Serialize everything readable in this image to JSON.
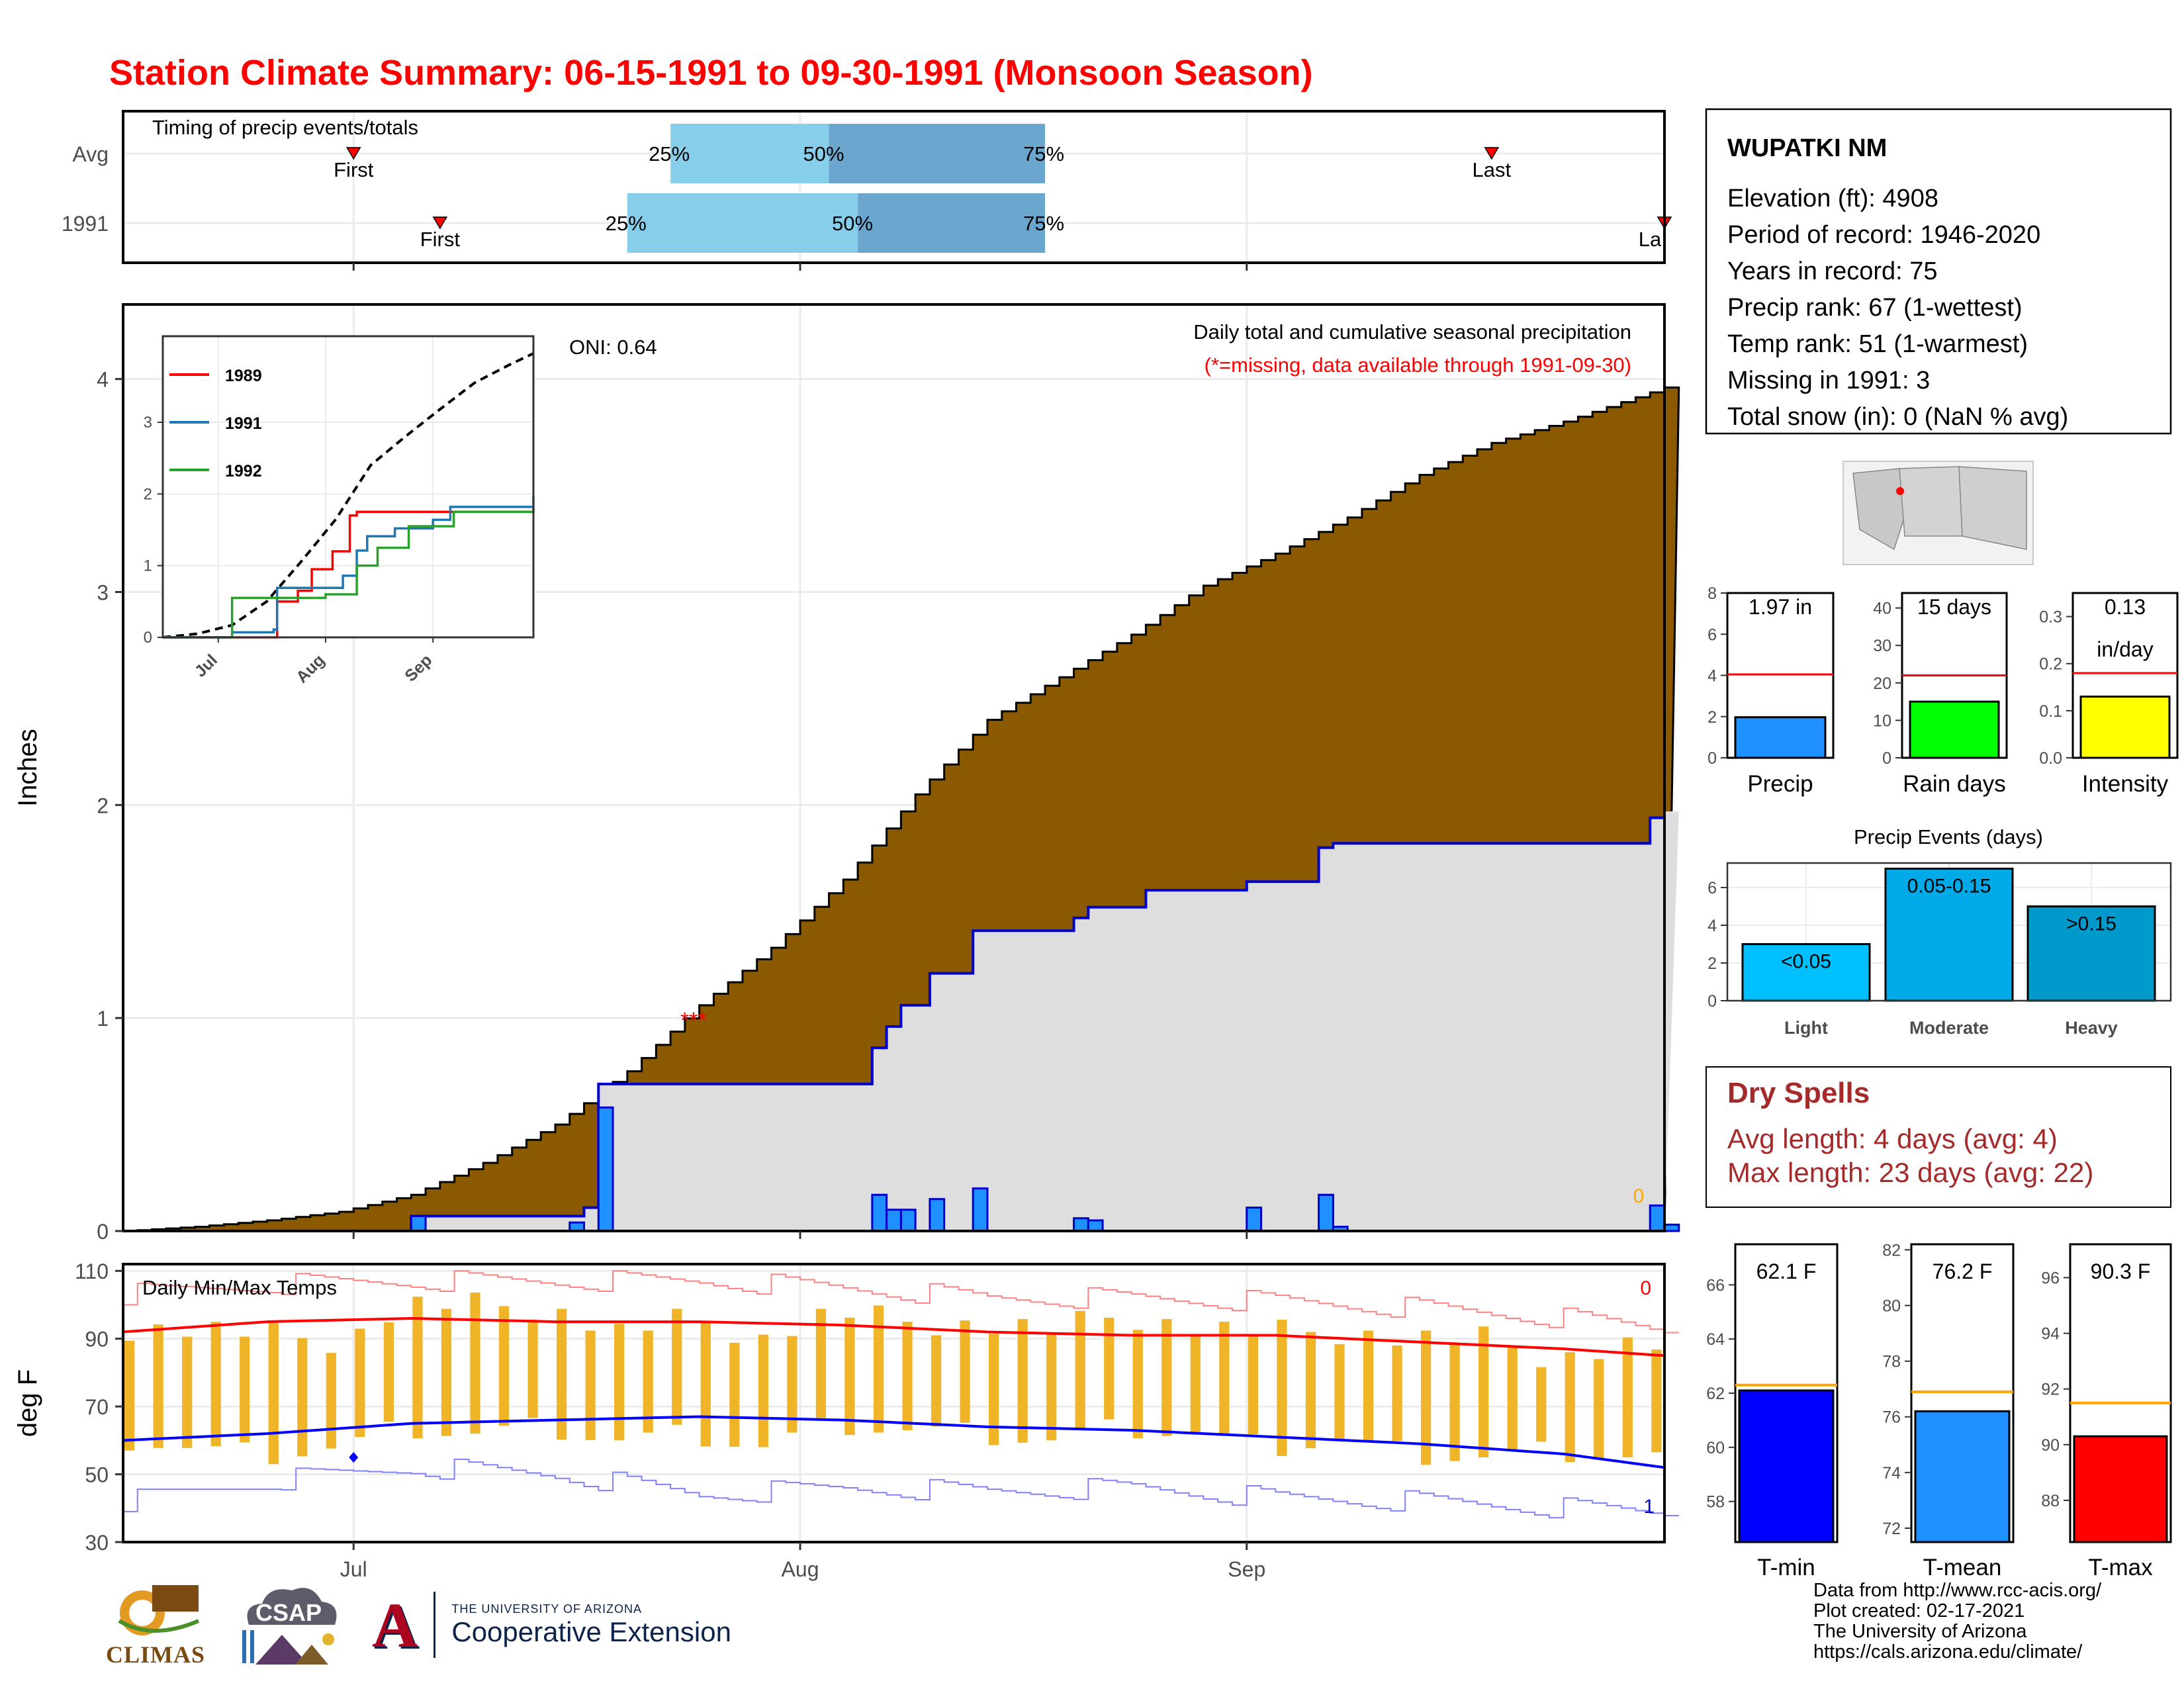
{
  "title": "Station Climate Summary: 06-15-1991 to 09-30-1991 (Monsoon Season)",
  "colors": {
    "title_red": "#ff0000",
    "cumulative_avg_fill": "#8b5a00",
    "observed_fill": "#dedede",
    "daily_bar": "#1e90ff",
    "daily_bar_border": "#0000cd",
    "timing_light": "#87ceeb",
    "timing_dark": "#6ba6cf",
    "temp_avg_max": "#ff0000",
    "temp_avg_min": "#0000ff",
    "temp_bar": "#f0b429",
    "record_line_max": "#ff8080",
    "record_line_min": "#8080ff",
    "tmin_bar": "#0000ff",
    "tmean_bar": "#1e90ff",
    "tmax_bar": "#ff0000",
    "precip_bar": "#1e90ff",
    "raindays_bar": "#00ff00",
    "intensity_bar": "#ffff00",
    "light_bar": "#00bfff",
    "moderate_bar": "#00a9e8",
    "heavy_bar": "#0099cc",
    "dry_spell_text": "#a52a2a"
  },
  "timing": {
    "title": "Timing of precip events/totals",
    "rows": [
      {
        "label": "Avg",
        "first_label": "First",
        "last_label": "Last",
        "first": "1991-07-01",
        "q25": "1991-07-23",
        "q50": "1991-08-03",
        "q75": "1991-08-18",
        "last": "1991-09-18"
      },
      {
        "label": "1991",
        "first_label": "First",
        "last_label": "La",
        "first": "1991-07-07",
        "q25": "1991-07-20",
        "q50": "1991-08-05",
        "q75": "1991-08-18",
        "last": "1991-09-30"
      }
    ],
    "q25_label": "25%",
    "q50_label": "50%",
    "q75_label": "75%"
  },
  "main_panel": {
    "annotation_title": "Daily total and cumulative seasonal precipitation",
    "annotation_missing": "(*=missing, data available through 1991-09-30)",
    "oni": "ONI: 0.64",
    "missing_marker": "***",
    "zero_label": "0",
    "ylabel": "Inches"
  },
  "inset": {
    "legend": [
      {
        "name": "1989",
        "color": "#ff0000"
      },
      {
        "name": "1991",
        "color": "#1f77b4"
      },
      {
        "name": "1992",
        "color": "#2ca02c"
      }
    ],
    "y_ticks": [
      "0",
      "1",
      "2",
      "3"
    ],
    "x_ticks": [
      "Jul",
      "Aug",
      "Sep"
    ]
  },
  "temp_panel": {
    "title": "Daily Min/Max Temps",
    "ylabel": "deg F",
    "y_ticks": [
      "30",
      "50",
      "70",
      "90",
      "110"
    ],
    "count_max": "0",
    "count_min": "1"
  },
  "x_ticks": [
    "Jul",
    "Aug",
    "Sep"
  ],
  "station": {
    "name": "WUPATKI NM",
    "lines": [
      "Elevation (ft): 4908",
      "Period of record: 1946-2020",
      "Years in record: 75",
      "Precip rank: 67 (1-wettest)",
      "Temp rank: 51 (1-warmest)",
      "Missing in 1991: 3",
      "Total snow (in): 0 (NaN % avg)"
    ]
  },
  "mini_bars": [
    {
      "label": "Precip",
      "value_text": "1.97 in",
      "value": 1.97,
      "avg": 4.05,
      "ymax": 8,
      "ticks": [
        "0",
        "2",
        "4",
        "6",
        "8"
      ],
      "tick_vals": [
        0,
        2,
        4,
        6,
        8
      ],
      "color": "#1e90ff"
    },
    {
      "label": "Rain days",
      "value_text": "15 days",
      "value": 15,
      "avg": 22,
      "ymax": 44,
      "ticks": [
        "0",
        "10",
        "20",
        "30",
        "40"
      ],
      "tick_vals": [
        0,
        10,
        20,
        30,
        40
      ],
      "color": "#00ff00"
    },
    {
      "label": "Intensity",
      "value_text": "0.13",
      "value_text2": "in/day",
      "value": 0.13,
      "avg": 0.18,
      "ymax": 0.35,
      "ticks": [
        "0.0",
        "0.1",
        "0.2",
        "0.3"
      ],
      "tick_vals": [
        0,
        0.1,
        0.2,
        0.3
      ],
      "color": "#ffff00"
    }
  ],
  "precip_events": {
    "title": "Precip Events (days)",
    "categories": [
      "Light",
      "Moderate",
      "Heavy"
    ],
    "bar_labels": [
      "<0.05",
      "0.05-0.15",
      ">0.15"
    ],
    "values": [
      3,
      7,
      5
    ],
    "ticks": [
      "0",
      "2",
      "4",
      "6"
    ],
    "colors": [
      "#00bfff",
      "#00a9e8",
      "#0099cc"
    ]
  },
  "dry_spells": {
    "title": "Dry Spells",
    "avg_line": "Avg length: 4 days (avg: 4)",
    "max_line": "Max length: 23 days (avg: 22)"
  },
  "temp_bars": [
    {
      "label": "T-min",
      "value_text": "62.1 F",
      "value": 62.1,
      "avg": 62.3,
      "ymin": 56.5,
      "ymax": 67.5,
      "ticks": [
        "58",
        "60",
        "62",
        "64",
        "66"
      ],
      "tick_vals": [
        58,
        60,
        62,
        64,
        66
      ],
      "color": "#0000ff"
    },
    {
      "label": "T-mean",
      "value_text": "76.2 F",
      "value": 76.2,
      "avg": 76.9,
      "ymin": 71.5,
      "ymax": 82.2,
      "ticks": [
        "72",
        "74",
        "76",
        "78",
        "80",
        "82"
      ],
      "tick_vals": [
        72,
        74,
        76,
        78,
        80,
        82
      ],
      "color": "#1e90ff"
    },
    {
      "label": "T-max",
      "value_text": "90.3 F",
      "value": 90.3,
      "avg": 91.5,
      "ymin": 86.5,
      "ymax": 97.2,
      "ticks": [
        "88",
        "90",
        "92",
        "94",
        "96"
      ],
      "tick_vals": [
        88,
        90,
        92,
        94,
        96
      ],
      "color": "#ff0000"
    }
  ],
  "logos": {
    "climas": "CLIMAS",
    "csap": "CSAP",
    "ua_small": "THE UNIVERSITY OF ARIZONA",
    "ua_big": "Cooperative Extension"
  },
  "credits": [
    "Data from http://www.rcc-acis.org/",
    "Plot created: 02-17-2021",
    "The University of Arizona",
    "https://cals.arizona.edu/climate/"
  ],
  "chart_data": [
    {
      "type": "area",
      "title": "Daily total and cumulative seasonal precipitation",
      "ylabel": "Inches",
      "x_start": "1991-06-15",
      "x_end": "1991-09-30",
      "ylim": [
        0,
        4.35
      ],
      "y_ticks": [
        0,
        1,
        2,
        3,
        4
      ],
      "x_ticks": [
        "Jul",
        "Aug",
        "Sep"
      ],
      "series": [
        {
          "name": "cumulative average",
          "x": [
            "1991-06-15",
            "1991-06-20",
            "1991-06-25",
            "1991-06-30",
            "1991-07-05",
            "1991-07-10",
            "1991-07-15",
            "1991-07-20",
            "1991-07-25",
            "1991-07-30",
            "1991-08-04",
            "1991-08-09",
            "1991-08-14",
            "1991-08-19",
            "1991-08-24",
            "1991-08-29",
            "1991-09-03",
            "1991-09-08",
            "1991-09-13",
            "1991-09-18",
            "1991-09-23",
            "1991-09-30"
          ],
          "values": [
            0.0,
            0.02,
            0.05,
            0.09,
            0.17,
            0.32,
            0.5,
            0.75,
            1.06,
            1.33,
            1.65,
            2.05,
            2.4,
            2.6,
            2.8,
            3.03,
            3.18,
            3.35,
            3.55,
            3.7,
            3.8,
            3.96
          ]
        },
        {
          "name": "cumulative 1991",
          "x": [
            "1991-06-15",
            "1991-07-05",
            "1991-07-17",
            "1991-07-18",
            "1991-08-06",
            "1991-08-07",
            "1991-08-08",
            "1991-08-10",
            "1991-08-13",
            "1991-08-20",
            "1991-08-21",
            "1991-08-25",
            "1991-09-01",
            "1991-09-06",
            "1991-09-07",
            "1991-09-29",
            "1991-09-30"
          ],
          "values": [
            0.0,
            0.07,
            0.11,
            0.69,
            0.86,
            0.96,
            1.06,
            1.21,
            1.41,
            1.47,
            1.52,
            1.6,
            1.64,
            1.8,
            1.82,
            1.94,
            1.97
          ]
        },
        {
          "name": "daily 1991",
          "x": [
            "1991-07-05",
            "1991-07-16",
            "1991-07-18",
            "1991-08-06",
            "1991-08-07",
            "1991-08-08",
            "1991-08-10",
            "1991-08-13",
            "1991-08-20",
            "1991-08-21",
            "1991-09-01",
            "1991-09-06",
            "1991-09-07",
            "1991-09-29",
            "1991-09-30"
          ],
          "values": [
            0.07,
            0.04,
            0.58,
            0.17,
            0.1,
            0.1,
            0.15,
            0.2,
            0.06,
            0.05,
            0.11,
            0.17,
            0.02,
            0.12,
            0.03
          ]
        }
      ],
      "annotations": [
        "ONI: 0.64",
        "(*=missing, data available through 1991-09-30)"
      ]
    },
    {
      "type": "line",
      "title": "",
      "ylim": [
        0,
        4.2
      ],
      "x_ticks": [
        "Jul",
        "Aug",
        "Sep"
      ],
      "y_ticks": [
        0,
        1,
        2,
        3
      ],
      "series": [
        {
          "name": "average",
          "x": [
            "1991-06-15",
            "1991-06-25",
            "1991-07-05",
            "1991-07-15",
            "1991-07-25",
            "1991-08-04",
            "1991-08-14",
            "1991-08-24",
            "1991-09-03",
            "1991-09-13",
            "1991-09-23",
            "1991-09-30"
          ],
          "values": [
            0,
            0.05,
            0.17,
            0.5,
            1.06,
            1.65,
            2.4,
            2.8,
            3.18,
            3.55,
            3.8,
            3.96
          ]
        },
        {
          "name": "1989",
          "x": [
            "1991-06-15",
            "1991-07-05",
            "1991-07-15",
            "1991-07-18",
            "1991-07-24",
            "1991-07-28",
            "1991-08-03",
            "1991-08-08",
            "1991-08-10",
            "1991-08-20",
            "1991-09-30"
          ],
          "values": [
            0,
            0,
            0,
            0.5,
            0.65,
            0.95,
            1.2,
            1.7,
            1.75,
            1.75,
            1.8
          ]
        },
        {
          "name": "1991",
          "x": [
            "1991-06-15",
            "1991-07-05",
            "1991-07-17",
            "1991-07-18",
            "1991-08-06",
            "1991-08-10",
            "1991-08-13",
            "1991-08-21",
            "1991-09-01",
            "1991-09-06",
            "1991-09-30"
          ],
          "values": [
            0,
            0.07,
            0.11,
            0.69,
            0.86,
            1.21,
            1.41,
            1.52,
            1.64,
            1.82,
            1.97
          ]
        },
        {
          "name": "1992",
          "x": [
            "1991-06-15",
            "1991-07-03",
            "1991-07-05",
            "1991-07-20",
            "1991-08-01",
            "1991-08-10",
            "1991-08-16",
            "1991-08-25",
            "1991-09-07",
            "1991-09-30"
          ],
          "values": [
            0,
            0,
            0.55,
            0.55,
            0.6,
            1.0,
            1.25,
            1.55,
            1.75,
            1.8
          ]
        }
      ]
    },
    {
      "type": "line",
      "title": "Daily Min/Max Temps",
      "ylabel": "deg F",
      "ylim": [
        30,
        112
      ],
      "y_ticks": [
        30,
        50,
        70,
        90,
        110
      ],
      "x_ticks": [
        "Jul",
        "Aug",
        "Sep"
      ],
      "series": [
        {
          "name": "average max",
          "x": [
            "1991-06-15",
            "1991-06-25",
            "1991-07-05",
            "1991-07-15",
            "1991-07-25",
            "1991-08-04",
            "1991-08-14",
            "1991-08-24",
            "1991-09-03",
            "1991-09-13",
            "1991-09-23",
            "1991-09-30"
          ],
          "values": [
            92,
            95,
            96,
            95,
            95,
            94,
            92,
            91,
            91,
            89,
            87,
            85
          ]
        },
        {
          "name": "average min",
          "x": [
            "1991-06-15",
            "1991-06-25",
            "1991-07-05",
            "1991-07-15",
            "1991-07-25",
            "1991-08-04",
            "1991-08-14",
            "1991-08-24",
            "1991-09-03",
            "1991-09-13",
            "1991-09-23",
            "1991-09-30"
          ],
          "values": [
            60,
            62,
            65,
            66,
            67,
            66,
            64,
            63,
            61,
            59,
            56,
            52
          ]
        },
        {
          "name": "record max",
          "x": [
            "1991-06-15",
            "1991-06-25",
            "1991-07-05",
            "1991-07-15",
            "1991-07-25",
            "1991-08-04",
            "1991-08-14",
            "1991-08-24",
            "1991-09-03",
            "1991-09-13",
            "1991-09-23",
            "1991-09-30"
          ],
          "values": [
            103,
            106,
            107,
            107,
            107,
            105,
            102,
            102,
            101,
            99,
            96,
            93
          ]
        },
        {
          "name": "record min",
          "x": [
            "1991-06-15",
            "1991-06-25",
            "1991-07-05",
            "1991-07-15",
            "1991-07-25",
            "1991-08-04",
            "1991-08-14",
            "1991-08-24",
            "1991-09-03",
            "1991-09-13",
            "1991-09-23",
            "1991-09-30"
          ],
          "values": [
            42,
            48,
            52,
            50,
            44,
            46,
            45,
            46,
            43,
            42,
            40,
            39
          ]
        },
        {
          "name": "daily max 1991",
          "x": [
            "1991-06-16",
            "1991-06-20",
            "1991-06-25",
            "1991-06-30",
            "1991-07-04",
            "1991-07-09",
            "1991-07-14",
            "1991-07-19",
            "1991-07-24",
            "1991-07-29",
            "1991-08-03",
            "1991-08-08",
            "1991-08-13",
            "1991-08-18",
            "1991-08-23",
            "1991-08-28",
            "1991-09-02",
            "1991-09-07",
            "1991-09-12",
            "1991-09-17",
            "1991-09-22",
            "1991-09-27"
          ],
          "values": [
            93,
            93,
            91,
            89,
            100,
            100,
            99,
            92,
            96,
            90,
            98,
            95,
            94,
            93,
            97,
            93,
            92,
            92,
            90,
            90,
            84,
            88
          ]
        },
        {
          "name": "daily min 1991",
          "x": [
            "1991-06-16",
            "1991-06-20",
            "1991-06-25",
            "1991-06-30",
            "1991-07-04",
            "1991-07-09",
            "1991-07-14",
            "1991-07-19",
            "1991-07-24",
            "1991-07-29",
            "1991-08-03",
            "1991-08-08",
            "1991-08-13",
            "1991-08-18",
            "1991-08-23",
            "1991-08-28",
            "1991-09-02",
            "1991-09-07",
            "1991-09-12",
            "1991-09-17",
            "1991-09-22",
            "1991-09-27"
          ],
          "values": [
            60,
            57,
            56,
            58,
            64,
            62,
            64,
            60,
            62,
            58,
            65,
            63,
            62,
            60,
            64,
            62,
            58,
            60,
            56,
            55,
            57,
            55
          ]
        }
      ]
    }
  ]
}
